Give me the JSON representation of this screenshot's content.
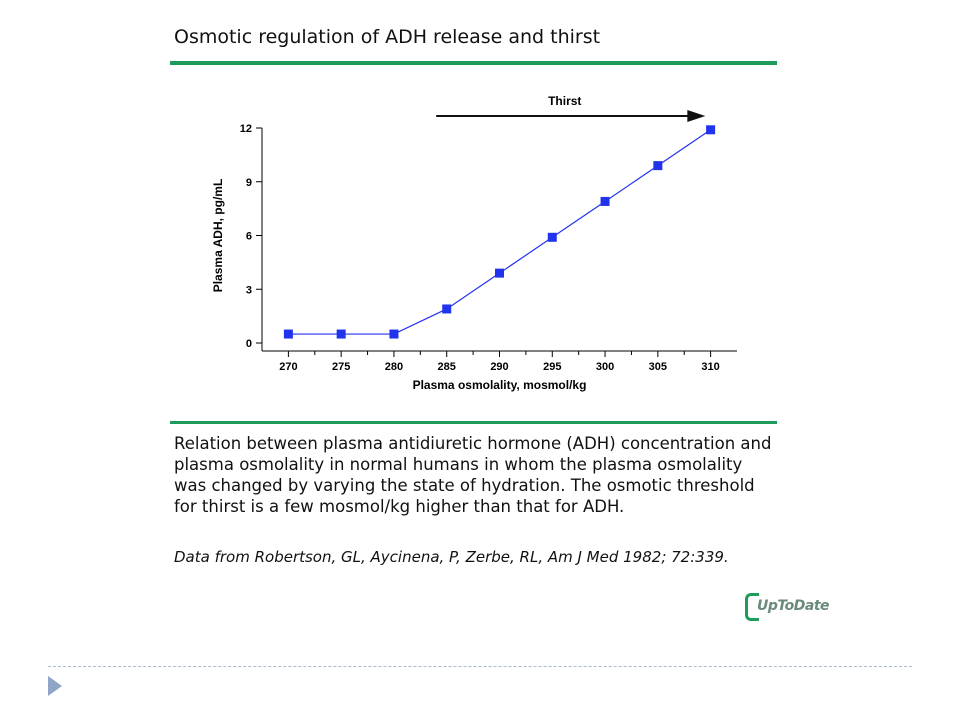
{
  "page": {
    "title": "Osmotic regulation of ADH release and thirst",
    "caption": "Relation between plasma antidiuretic hormone (ADH) concentration and plasma osmolality in normal humans in whom the plasma osmolality was changed by varying the state of hydration. The osmotic threshold for thirst is a few mosmol/kg higher than that for ADH.",
    "source": "Data from Robertson, GL, Aycinena, P, Zerbe, RL, Am J Med 1982; 72:339.",
    "logo_text": "UpToDate",
    "colors": {
      "accent_green": "#1f9b5a",
      "series_blue": "#2233ee",
      "footer_arrow": "#8fa6c6"
    }
  },
  "chart_data": {
    "type": "line",
    "x": [
      270,
      275,
      280,
      285,
      290,
      295,
      300,
      305,
      310
    ],
    "series": [
      {
        "values": [
          0.5,
          0.5,
          0.5,
          1.9,
          3.9,
          5.9,
          7.9,
          9.9,
          11.9
        ]
      }
    ],
    "xlabel": "Plasma osmolality, mosmol/kg",
    "ylabel": "Plasma ADH, pg/mL",
    "x_ticks": [
      270,
      275,
      280,
      285,
      290,
      295,
      300,
      305,
      310
    ],
    "y_ticks": [
      0,
      3,
      6,
      9,
      12
    ],
    "xlim": [
      267.5,
      312.5
    ],
    "ylim": [
      0,
      12
    ],
    "grid": false,
    "annotation": {
      "text": "Thirst",
      "arrow_start_x": 284,
      "arrow_end_x": 309.5
    }
  }
}
